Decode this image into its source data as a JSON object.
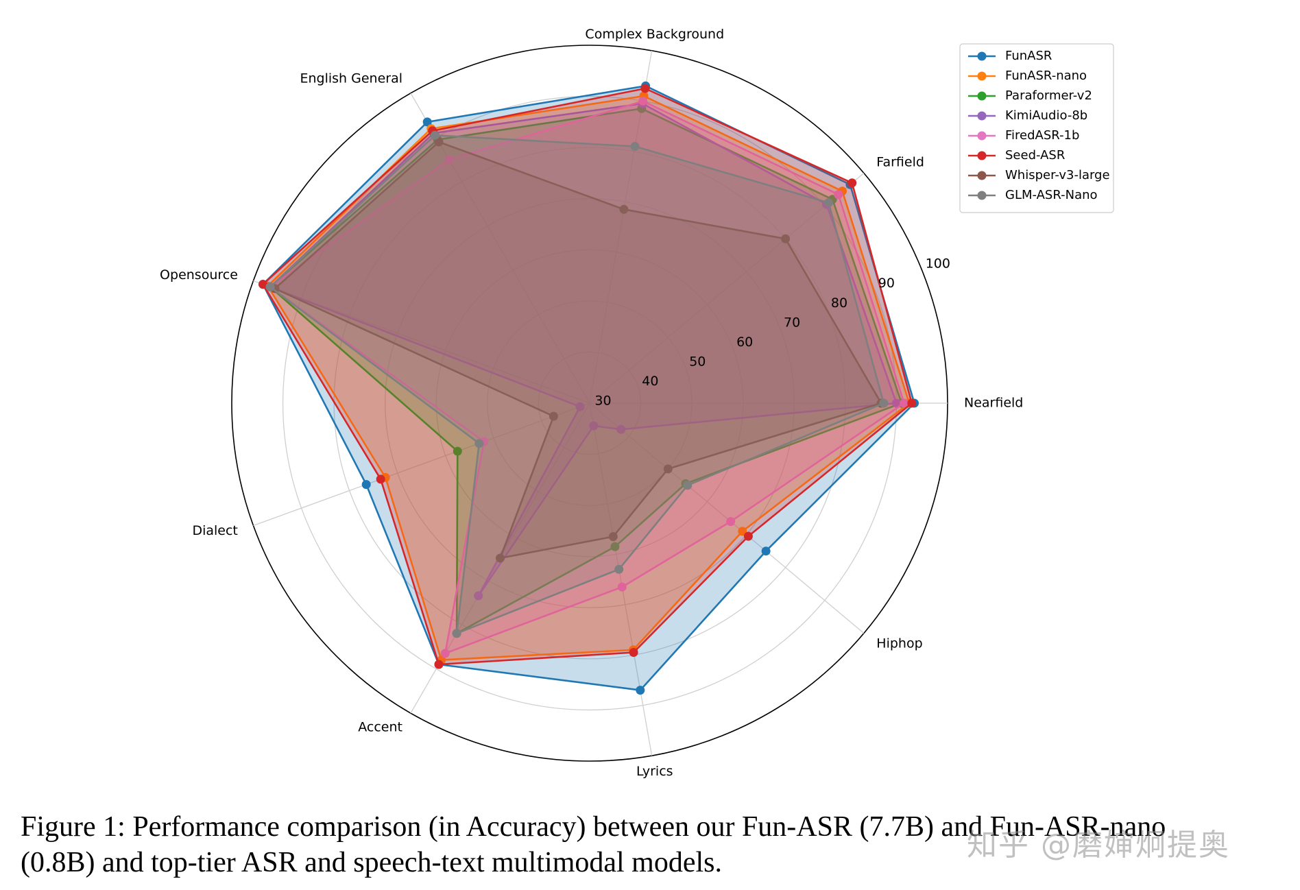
{
  "chart_data": {
    "type": "radar",
    "title": "",
    "axes": [
      "Nearfield",
      "Farfield",
      "Complex Background",
      "English General",
      "Opensource",
      "Dialect",
      "Accent",
      "Lyrics",
      "Hiphop"
    ],
    "rlim": [
      30,
      100
    ],
    "rticks": [
      30,
      40,
      50,
      60,
      70,
      80,
      90,
      100
    ],
    "grid": true,
    "legend_position": "top-right",
    "series": [
      {
        "name": "FunASR",
        "color": "#1f77b4",
        "values": [
          93.5,
          96.5,
          93.0,
          93.5,
          98.0,
          76.5,
          89.0,
          87.0,
          75.0
        ]
      },
      {
        "name": "FunASR-nano",
        "color": "#ff7f0e",
        "values": [
          92.5,
          94.5,
          91.0,
          92.0,
          97.0,
          72.5,
          88.0,
          79.0,
          69.0
        ]
      },
      {
        "name": "Paraformer-v2",
        "color": "#2ca02c",
        "values": [
          91.0,
          92.0,
          88.5,
          89.5,
          96.5,
          57.5,
          82.0,
          58.5,
          54.5
        ]
      },
      {
        "name": "KimiAudio-8b",
        "color": "#9467bd",
        "values": [
          90.0,
          90.5,
          89.5,
          91.0,
          96.5,
          32.0,
          73.5,
          34.5,
          38.0
        ]
      },
      {
        "name": "FiredASR-1b",
        "color": "#e377c2",
        "values": [
          91.5,
          93.5,
          90.0,
          85.0,
          96.5,
          52.0,
          86.5,
          66.5,
          66.0
        ]
      },
      {
        "name": "Seed-ASR",
        "color": "#d62728",
        "values": [
          93.0,
          97.0,
          92.5,
          91.5,
          98.0,
          73.5,
          89.0,
          79.5,
          70.5
        ]
      },
      {
        "name": "Whisper-v3-large",
        "color": "#8c564b",
        "values": [
          87.0,
          80.0,
          68.5,
          89.0,
          95.5,
          37.5,
          65.0,
          56.5,
          50.0
        ]
      },
      {
        "name": "GLM-ASR-Nano",
        "color": "#7f7f7f",
        "values": [
          87.5,
          91.0,
          81.0,
          90.5,
          96.5,
          53.0,
          82.0,
          63.0,
          55.0
        ]
      }
    ]
  },
  "caption": {
    "line1": "Figure 1: Performance comparison (in Accuracy) between our Fun-ASR (7.7B) and Fun-ASR-nano",
    "line2": "(0.8B) and top-tier ASR and speech-text multimodal models."
  },
  "watermark": "知乎 @磨婶炯提奥"
}
